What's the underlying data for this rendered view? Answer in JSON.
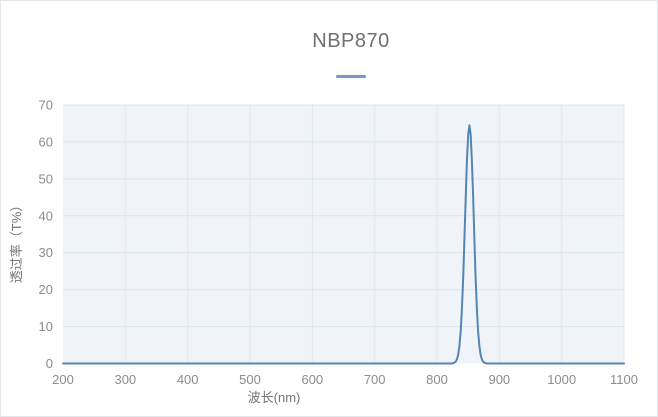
{
  "page": {
    "background": "#ffffff",
    "frame_border_color": "#e4e7ea"
  },
  "chart": {
    "title": "NBP870",
    "title_color": "#707070",
    "legend_marker_color": "#729bc9",
    "series_color": "#5584b6",
    "plot_bg": "#f0f4f8",
    "h_grid_color": "#dde4ec",
    "v_grid_color": "#e3e9f0",
    "tick_color": "#8c8c8c",
    "axis_title_color": "#757575",
    "x_axis_title": "波长(nm)",
    "y_axis_title": "透过率（T%）"
  },
  "chart_data": {
    "type": "line",
    "title": "NBP870",
    "xlabel": "波长(nm)",
    "ylabel": "透过率（T%）",
    "xlim": [
      200,
      1100
    ],
    "ylim": [
      0,
      70
    ],
    "x_ticks": [
      200,
      300,
      400,
      500,
      600,
      700,
      800,
      900,
      1000,
      1100
    ],
    "y_ticks": [
      0,
      10,
      20,
      30,
      40,
      50,
      60,
      70
    ],
    "grid": true,
    "legend_position": "top-center, single unlabeled line marker below title",
    "series": [
      {
        "name": "NBP870",
        "peak_wavelength_nm": 852,
        "peak_transmittance_pct": 64.5,
        "fwhm_nm": 16,
        "x": [
          200,
          250,
          300,
          350,
          400,
          450,
          500,
          550,
          600,
          650,
          700,
          750,
          800,
          810,
          820,
          825,
          830,
          832,
          834,
          836,
          838,
          840,
          842,
          844,
          846,
          848,
          850,
          852,
          854,
          856,
          858,
          860,
          862,
          864,
          866,
          868,
          870,
          872,
          874,
          876,
          878,
          880,
          890,
          900,
          950,
          1000,
          1050,
          1100
        ],
        "y": [
          0,
          0,
          0,
          0,
          0,
          0,
          0,
          0,
          0,
          0,
          0,
          0,
          0,
          0,
          0,
          0,
          0.5,
          1.1,
          2.4,
          4.7,
          8.7,
          14.8,
          23.2,
          33.6,
          44.7,
          54.8,
          61.9,
          64.5,
          61.9,
          54.8,
          44.7,
          33.6,
          23.2,
          14.8,
          8.7,
          4.7,
          2.4,
          1.1,
          0.5,
          0.2,
          0.1,
          0,
          0,
          0,
          0,
          0,
          0,
          0
        ]
      }
    ]
  }
}
